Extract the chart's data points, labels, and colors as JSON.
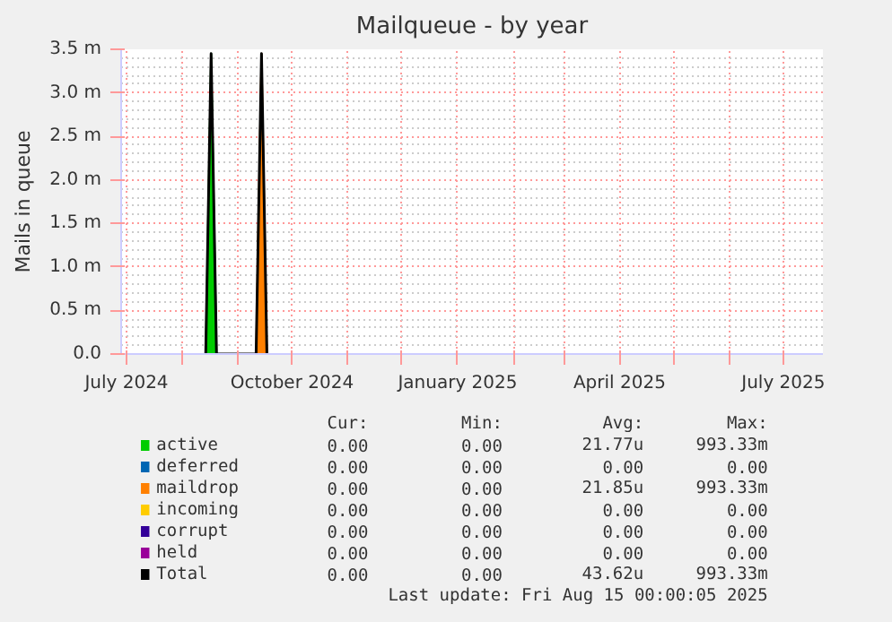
{
  "chart_data": {
    "type": "area",
    "title": "Mailqueue - by year",
    "ylabel": "Mails in queue",
    "grid": true,
    "legend": "bottom",
    "x": [
      "2024-08-14",
      "2024-08-17",
      "2024-08-20",
      "2024-09-11",
      "2024-09-14",
      "2024-09-17"
    ],
    "xlim": [
      "2024-06-28",
      "2025-07-23"
    ],
    "xticks": [
      {
        "value": "2024-07-01",
        "label": "July 2024"
      },
      {
        "value": "2024-08-01",
        "label": null
      },
      {
        "value": "2024-09-01",
        "label": null
      },
      {
        "value": "2024-10-01",
        "label": "October 2024"
      },
      {
        "value": "2024-11-01",
        "label": null
      },
      {
        "value": "2024-12-01",
        "label": null
      },
      {
        "value": "2025-01-01",
        "label": "January 2025"
      },
      {
        "value": "2025-02-01",
        "label": null
      },
      {
        "value": "2025-03-01",
        "label": null
      },
      {
        "value": "2025-04-01",
        "label": "April 2025"
      },
      {
        "value": "2025-05-01",
        "label": null
      },
      {
        "value": "2025-06-01",
        "label": null
      },
      {
        "value": "2025-07-01",
        "label": "July 2025"
      }
    ],
    "ylim": [
      0,
      3.5
    ],
    "yticks": [
      {
        "value": 0,
        "label": "0.0"
      },
      {
        "value": 0.5,
        "label": "0.5 m"
      },
      {
        "value": 1,
        "label": "1.0 m"
      },
      {
        "value": 1.5,
        "label": "1.5 m"
      },
      {
        "value": 2,
        "label": "2.0 m"
      },
      {
        "value": 2.5,
        "label": "2.5 m"
      },
      {
        "value": 3,
        "label": "3.0 m"
      },
      {
        "value": 3.5,
        "label": "3.5 m"
      }
    ],
    "series": [
      {
        "name": "active",
        "color": "#00cc00",
        "values": [
          0,
          3.45,
          0,
          null,
          null,
          null
        ]
      },
      {
        "name": "deferred",
        "color": "#0066b3",
        "values": [
          null,
          null,
          null,
          null,
          null,
          null
        ]
      },
      {
        "name": "maildrop",
        "color": "#ff8000",
        "values": [
          null,
          null,
          null,
          0,
          3.45,
          0
        ]
      },
      {
        "name": "incoming",
        "color": "#ffcc00",
        "values": [
          null,
          null,
          null,
          null,
          null,
          null
        ]
      },
      {
        "name": "corrupt",
        "color": "#330099",
        "values": [
          null,
          null,
          null,
          null,
          null,
          null
        ]
      },
      {
        "name": "held",
        "color": "#990099",
        "values": [
          null,
          null,
          null,
          null,
          null,
          null
        ]
      },
      {
        "name": "Total",
        "type": "line",
        "color": "#000000",
        "values": [
          0,
          3.45,
          0,
          0,
          3.45,
          0
        ]
      }
    ],
    "annotations": [
      "Cur:",
      "Min:",
      "Avg:",
      "Max:",
      "0.00",
      "0.00",
      "21.77u",
      "993.33m",
      "0.00",
      "0.00",
      "0.00",
      "0.00",
      "0.00",
      "0.00",
      "21.85u",
      "993.33m",
      "0.00",
      "0.00",
      "0.00",
      "0.00",
      "0.00",
      "0.00",
      "0.00",
      "0.00",
      "0.00",
      "0.00",
      "0.00",
      "0.00",
      "0.00",
      "0.00",
      "43.62u",
      "993.33m",
      "Last update: Fri Aug 15 00:00:05 2025"
    ]
  }
}
